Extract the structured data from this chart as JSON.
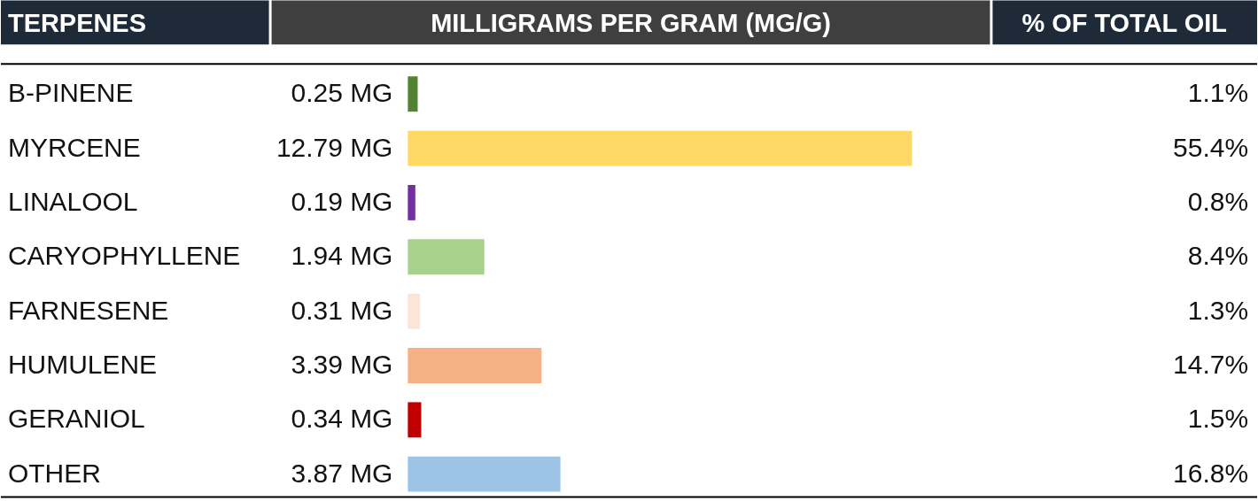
{
  "chart_data": {
    "type": "bar",
    "orientation": "horizontal",
    "ylabel": "TERPENES",
    "xlabel": "MILLIGRAMS PER GRAM (MG/G)",
    "y2label": "% OF TOTAL OIL",
    "categories": [
      "B-PINENE",
      "MYRCENE",
      "LINALOOL",
      "CARYOPHYLLENE",
      "FARNESENE",
      "HUMULENE",
      "GERANIOL",
      "OTHER"
    ],
    "values": [
      0.25,
      12.79,
      0.19,
      1.94,
      0.31,
      3.39,
      0.34,
      3.87
    ],
    "colors": [
      "#548235",
      "#ffd966",
      "#7030a0",
      "#a9d18e",
      "#fbe5d6",
      "#f4b183",
      "#c00000",
      "#9dc3e6"
    ],
    "value_labels": [
      "0.25 MG",
      "12.79 MG",
      "0.19 MG",
      "1.94 MG",
      "0.31 MG",
      "3.39 MG",
      "0.34 MG",
      "3.87 MG"
    ],
    "annotations": [
      "1.1%",
      "55.4%",
      "0.8%",
      "8.4%",
      "1.3%",
      "14.7%",
      "1.5%",
      "16.8%"
    ]
  }
}
